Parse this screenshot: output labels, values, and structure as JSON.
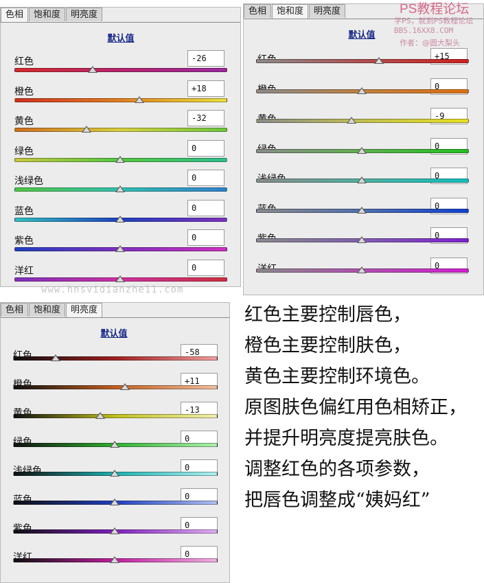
{
  "panels": [
    {
      "id": "hue",
      "tabs": [
        "色相",
        "饱和度",
        "明亮度"
      ],
      "active_tab": 0,
      "defaults_label": "默认值",
      "rows": [
        {
          "label": "红色",
          "value": "-26",
          "level": 0.37,
          "gradient": [
            "#d62a2a",
            "#b8246e",
            "#9a2aa0"
          ]
        },
        {
          "label": "橙色",
          "value": "+18",
          "level": 0.59,
          "gradient": [
            "#d03020",
            "#e08020",
            "#e8e040"
          ]
        },
        {
          "label": "黄色",
          "value": "-32",
          "level": 0.34,
          "gradient": [
            "#d07020",
            "#d8d040",
            "#6cc840"
          ]
        },
        {
          "label": "绿色",
          "value": "0",
          "level": 0.5,
          "gradient": [
            "#c8c840",
            "#50c840",
            "#30c090"
          ]
        },
        {
          "label": "浅绿色",
          "value": "0",
          "level": 0.5,
          "gradient": [
            "#50c840",
            "#30c0b0",
            "#3080d0"
          ]
        },
        {
          "label": "蓝色",
          "value": "0",
          "level": 0.5,
          "gradient": [
            "#30c0c0",
            "#2040c0",
            "#8030c0"
          ]
        },
        {
          "label": "紫色",
          "value": "0",
          "level": 0.5,
          "gradient": [
            "#2040c0",
            "#8030c0",
            "#d030c0"
          ]
        },
        {
          "label": "洋红",
          "value": "0",
          "level": 0.5,
          "gradient": [
            "#8030c0",
            "#d030a0",
            "#d03040"
          ]
        }
      ]
    },
    {
      "id": "saturation",
      "tabs": [
        "色相",
        "饱和度",
        "明亮度"
      ],
      "active_tab": 1,
      "defaults_label": "默认值",
      "rows": [
        {
          "label": "红色",
          "value": "+15",
          "level": 0.58,
          "gradient": [
            "#8a8a8a",
            "#b05050",
            "#d02020"
          ]
        },
        {
          "label": "橙色",
          "value": "0",
          "level": 0.5,
          "gradient": [
            "#8a8a8a",
            "#c08040",
            "#e07010"
          ]
        },
        {
          "label": "黄色",
          "value": "-9",
          "level": 0.45,
          "gradient": [
            "#8a8a8a",
            "#c0c050",
            "#e8e020"
          ]
        },
        {
          "label": "绿色",
          "value": "0",
          "level": 0.5,
          "gradient": [
            "#8a8a8a",
            "#60b050",
            "#20c020"
          ]
        },
        {
          "label": "浅绿色",
          "value": "0",
          "level": 0.5,
          "gradient": [
            "#8a8a8a",
            "#50b0a0",
            "#10c0c0"
          ]
        },
        {
          "label": "蓝色",
          "value": "0",
          "level": 0.5,
          "gradient": [
            "#8a8a8a",
            "#5070b0",
            "#1040d0"
          ]
        },
        {
          "label": "紫色",
          "value": "0",
          "level": 0.5,
          "gradient": [
            "#8a8a8a",
            "#8060b0",
            "#8020d0"
          ]
        },
        {
          "label": "洋红",
          "value": "0",
          "level": 0.5,
          "gradient": [
            "#8a8a8a",
            "#b050b0",
            "#d020d0"
          ]
        }
      ]
    },
    {
      "id": "luminance",
      "tabs": [
        "色相",
        "饱和度",
        "明亮度"
      ],
      "active_tab": 2,
      "defaults_label": "默认值",
      "rows": [
        {
          "label": "红色",
          "value": "-58",
          "level": 0.21,
          "gradient": [
            "#101010",
            "#a02020",
            "#f0a0a0"
          ]
        },
        {
          "label": "橙色",
          "value": "+11",
          "level": 0.55,
          "gradient": [
            "#101010",
            "#c06020",
            "#f0c0a0"
          ]
        },
        {
          "label": "黄色",
          "value": "-13",
          "level": 0.43,
          "gradient": [
            "#101010",
            "#c0c020",
            "#f0f0b0"
          ]
        },
        {
          "label": "绿色",
          "value": "0",
          "level": 0.5,
          "gradient": [
            "#101010",
            "#30b030",
            "#b0f0b0"
          ]
        },
        {
          "label": "浅绿色",
          "value": "0",
          "level": 0.5,
          "gradient": [
            "#101010",
            "#20b0b0",
            "#b0f0f0"
          ]
        },
        {
          "label": "蓝色",
          "value": "0",
          "level": 0.5,
          "gradient": [
            "#101010",
            "#2040c0",
            "#b0c0f0"
          ]
        },
        {
          "label": "紫色",
          "value": "0",
          "level": 0.5,
          "gradient": [
            "#101010",
            "#8020c0",
            "#e0b0f0"
          ]
        },
        {
          "label": "洋红",
          "value": "0",
          "level": 0.5,
          "gradient": [
            "#101010",
            "#c020a0",
            "#f0b0e0"
          ]
        }
      ]
    }
  ],
  "caption_lines": [
    "红色主要控制唇色，",
    "橙色主要控制肤色，",
    "黄色主要控制环境色。",
    "原图肤色偏红用色相矫正，",
    "并提升明亮度提亮肤色。",
    "调整红色的各项参数，",
    "把唇色调整成“姨妈红”"
  ],
  "watermark": {
    "title": "PS教程论坛",
    "line2": "学PS，就到PS教程论坛",
    "line3": "BBS.16XX8.COM",
    "line4": "作者：@圆大梨头",
    "line5": "www.hnsvidianzhe11.com"
  }
}
